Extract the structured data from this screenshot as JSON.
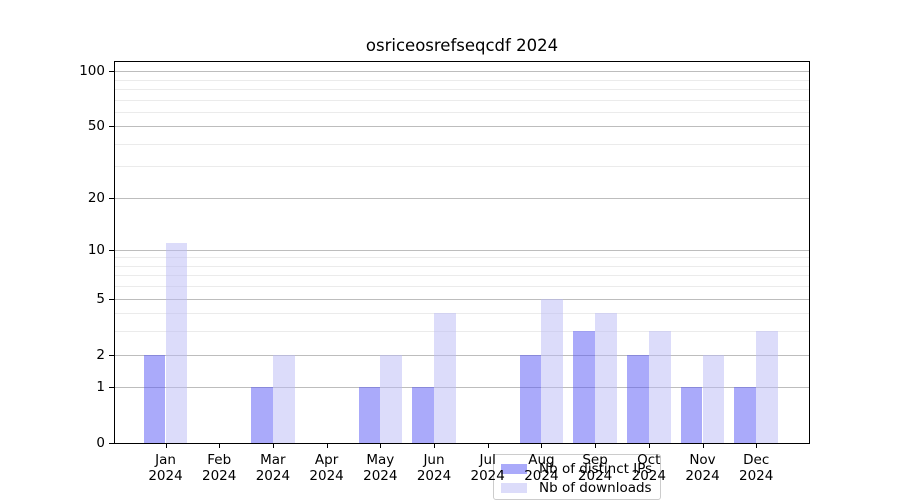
{
  "title": "osriceosrefseqcdf 2024",
  "chart_data": {
    "type": "bar",
    "title": "osriceosrefseqcdf 2024",
    "categories": [
      "Jan",
      "Feb",
      "Mar",
      "Apr",
      "May",
      "Jun",
      "Jul",
      "Aug",
      "Sep",
      "Oct",
      "Nov",
      "Dec"
    ],
    "year": "2024",
    "series": [
      {
        "name": "Nb of distinct IPs",
        "color": "#5555f5",
        "opacity": 0.5,
        "apparent_color": "#aaaafa",
        "values": [
          2,
          0,
          1,
          0,
          1,
          1,
          0,
          2,
          3,
          2,
          1,
          1
        ]
      },
      {
        "name": "Nb of downloads",
        "color": "#b9b9f5",
        "opacity": 0.5,
        "apparent_color": "#dcdcfa",
        "values": [
          11,
          0,
          2,
          0,
          2,
          4,
          0,
          5,
          4,
          3,
          2,
          3
        ]
      }
    ],
    "xlabel": "",
    "ylabel": "",
    "yscale": "log1p",
    "ylim": [
      0,
      112
    ],
    "yticks": [
      0,
      1,
      2,
      5,
      10,
      20,
      50,
      100
    ],
    "yticks_minor": [
      3,
      4,
      6,
      7,
      8,
      9,
      30,
      40,
      60,
      70,
      80,
      90
    ],
    "grid": "on",
    "legend_position": "lower center"
  },
  "colors": {
    "background": "#ffffff",
    "axis": "#000000",
    "grid_major": "#bdbdbd",
    "grid_minor": "#ebebeb",
    "legend_border": "#cccccc"
  }
}
